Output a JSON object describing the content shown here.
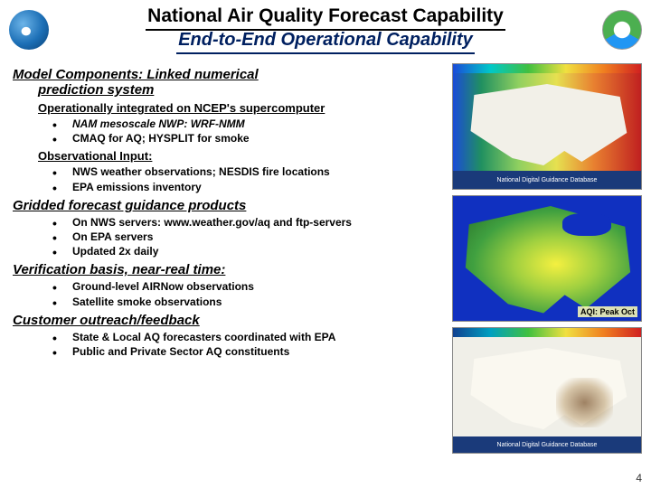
{
  "header": {
    "title_main": "National Air Quality Forecast Capability",
    "title_sub": "End-to-End Operational Capability"
  },
  "sections": {
    "model_components": {
      "heading": "Model Components: Linked numerical",
      "heading2": "prediction system",
      "sub_heading": "Operationally integrated on NCEP's supercomputer",
      "bullets": [
        "NAM mesoscale NWP: WRF-NMM",
        "CMAQ for AQ; HYSPLIT for smoke"
      ],
      "obs_heading": "Observational Input:",
      "obs_bullets": [
        "NWS weather observations; NESDIS fire locations",
        "EPA emissions inventory"
      ]
    },
    "gridded": {
      "heading": "Gridded forecast guidance products",
      "bullets": [
        "On NWS servers: www.weather.gov/aq and ftp-servers",
        "On EPA servers",
        "Updated 2x daily"
      ]
    },
    "verification": {
      "heading": "Verification basis, near-real time:",
      "bullets": [
        "Ground-level AIRNow observations",
        "Satellite smoke observations"
      ]
    },
    "customer": {
      "heading": "Customer outreach/feedback",
      "bullets": [
        "State & Local AQ forecasters coordinated with EPA",
        "Public and Private Sector AQ constituents"
      ]
    }
  },
  "maps": {
    "a_footer": "National Digital Guidance Database",
    "b_caption": "AQI:  Peak Oct",
    "c_footer": "National Digital Guidance Database"
  },
  "page_number": "4",
  "colors": {
    "title_sub": "#002060",
    "text": "#000000"
  }
}
